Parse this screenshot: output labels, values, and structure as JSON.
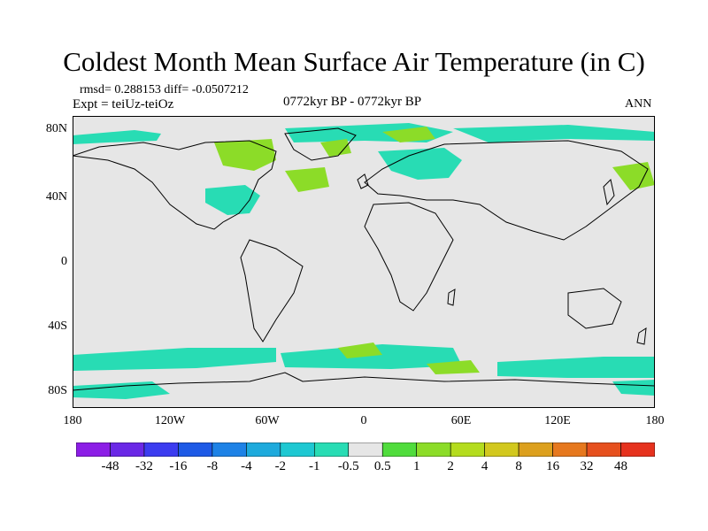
{
  "title": "Coldest Month Mean Surface Air Temperature (in C)",
  "stats_text": "rmsd= 0.288153 diff= -0.0507212",
  "experiment_text": "Expt = teiUz-teiOz",
  "period_text": "0772kyr BP - 0772kyr BP",
  "season_text": "ANN",
  "lat_labels": [
    "80N",
    "40N",
    "0",
    "40S",
    "80S"
  ],
  "lon_labels": [
    "180",
    "120W",
    "60W",
    "0",
    "60E",
    "120E",
    "180"
  ],
  "colorbar": {
    "labels": [
      "-48",
      "-32",
      "-16",
      "-8",
      "-4",
      "-2",
      "-1",
      "-0.5",
      "0.5",
      "1",
      "2",
      "4",
      "8",
      "16",
      "32",
      "48"
    ],
    "colors": [
      "#8c1ee6",
      "#6a28e6",
      "#3c3cf0",
      "#1e5ae6",
      "#1e82e6",
      "#1eaadc",
      "#1ec8d2",
      "#28dcb4",
      "#e6e6e6",
      "#50dc3c",
      "#8cdc28",
      "#b4dc1e",
      "#d2c81e",
      "#dca01e",
      "#e6781e",
      "#e6501e",
      "#e6321e"
    ]
  },
  "map_colors": {
    "background": "#e6e6e6",
    "cyan_anomaly": "#28dcb4",
    "green_anomaly": "#8cdc28",
    "coastline": "#000000"
  }
}
